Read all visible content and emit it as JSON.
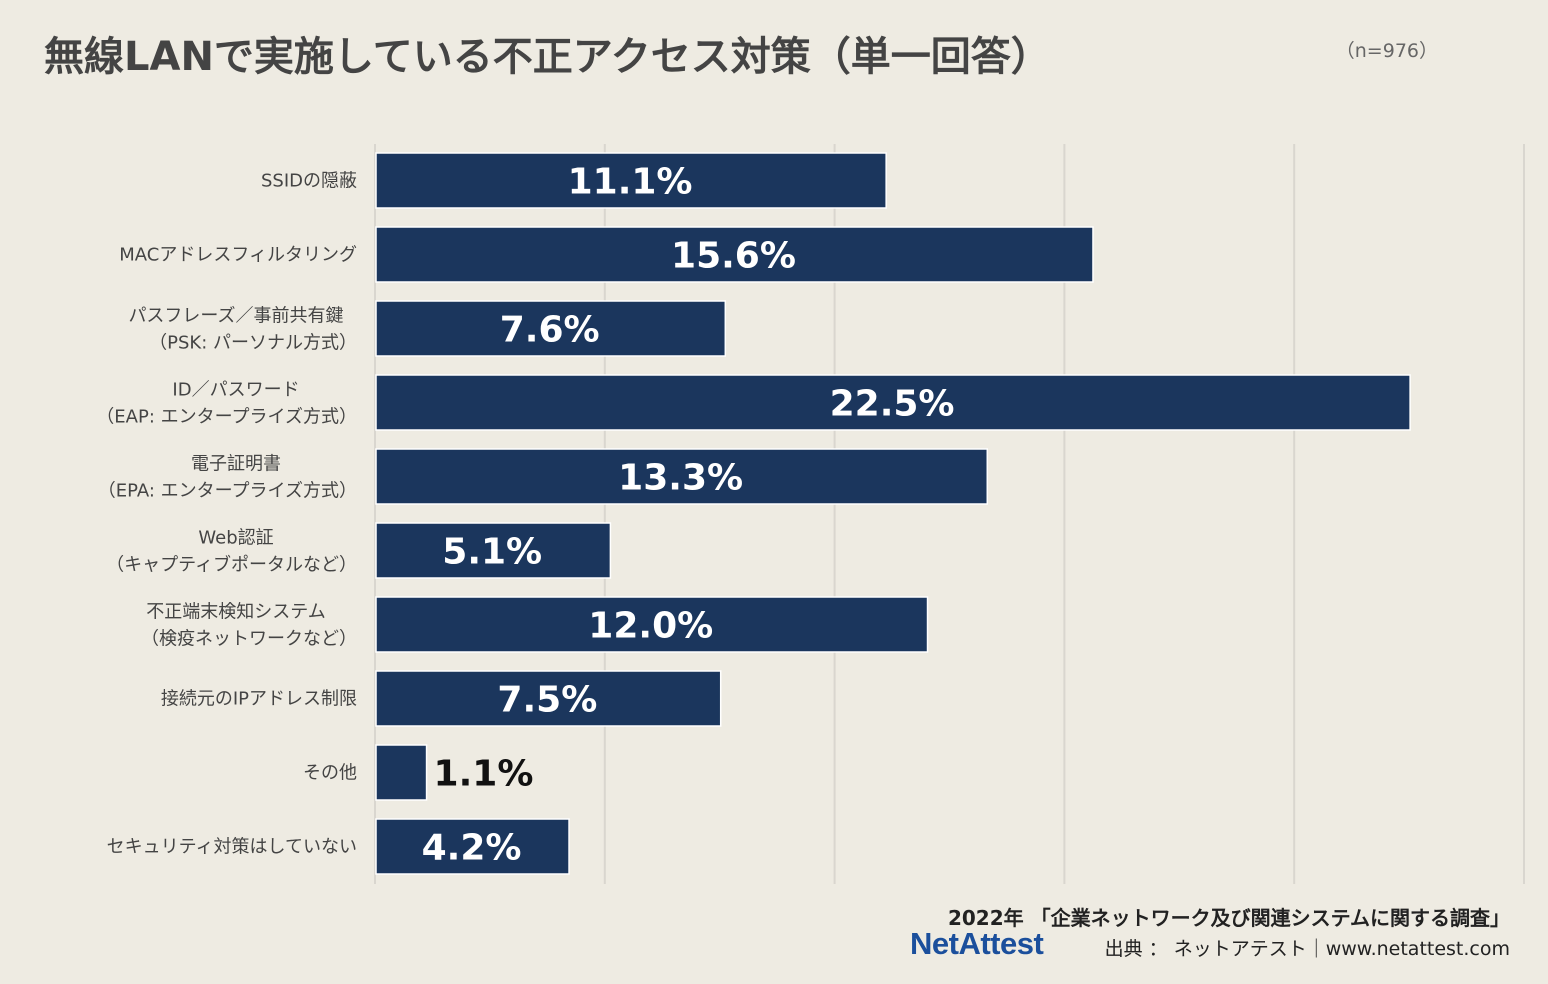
{
  "title": "無線LANで実施している不正アクセス対策（単一回答）",
  "sample_size": "（n=976）",
  "chart_data": {
    "type": "bar",
    "orientation": "horizontal",
    "categories": [
      [
        "SSIDの隠蔽"
      ],
      [
        "MACアドレスフィルタリング"
      ],
      [
        "パスフレーズ／事前共有鍵",
        "（PSK: パーソナル方式）"
      ],
      [
        "ID／パスワード",
        "（EAP: エンタープライズ方式）"
      ],
      [
        "電子証明書",
        "（EPA: エンタープライズ方式）"
      ],
      [
        "Web認証",
        "（キャプティブポータルなど）"
      ],
      [
        "不正端末検知システム",
        "（検疫ネットワークなど）"
      ],
      [
        "接続元のIPアドレス制限"
      ],
      [
        "その他"
      ],
      [
        "セキュリティ対策はしていない"
      ]
    ],
    "values": [
      11.1,
      15.6,
      7.6,
      22.5,
      13.3,
      5.1,
      12.0,
      7.5,
      1.1,
      4.2
    ],
    "data_labels": [
      "11.1%",
      "15.6%",
      "7.6%",
      "22.5%",
      "13.3%",
      "5.1%",
      "12.0%",
      "7.5%",
      "1.1%",
      "4.2%"
    ],
    "xlim": [
      0,
      25
    ],
    "grid": true,
    "bar_color": "#1b365d",
    "grid_color": "#d9d6cf"
  },
  "footer": {
    "survey": "2022年 「企業ネットワーク及び関連システムに関する調査」",
    "logo": "NetAttest",
    "credit": "出典 ： ネットアテスト｜www.netattest.com"
  }
}
